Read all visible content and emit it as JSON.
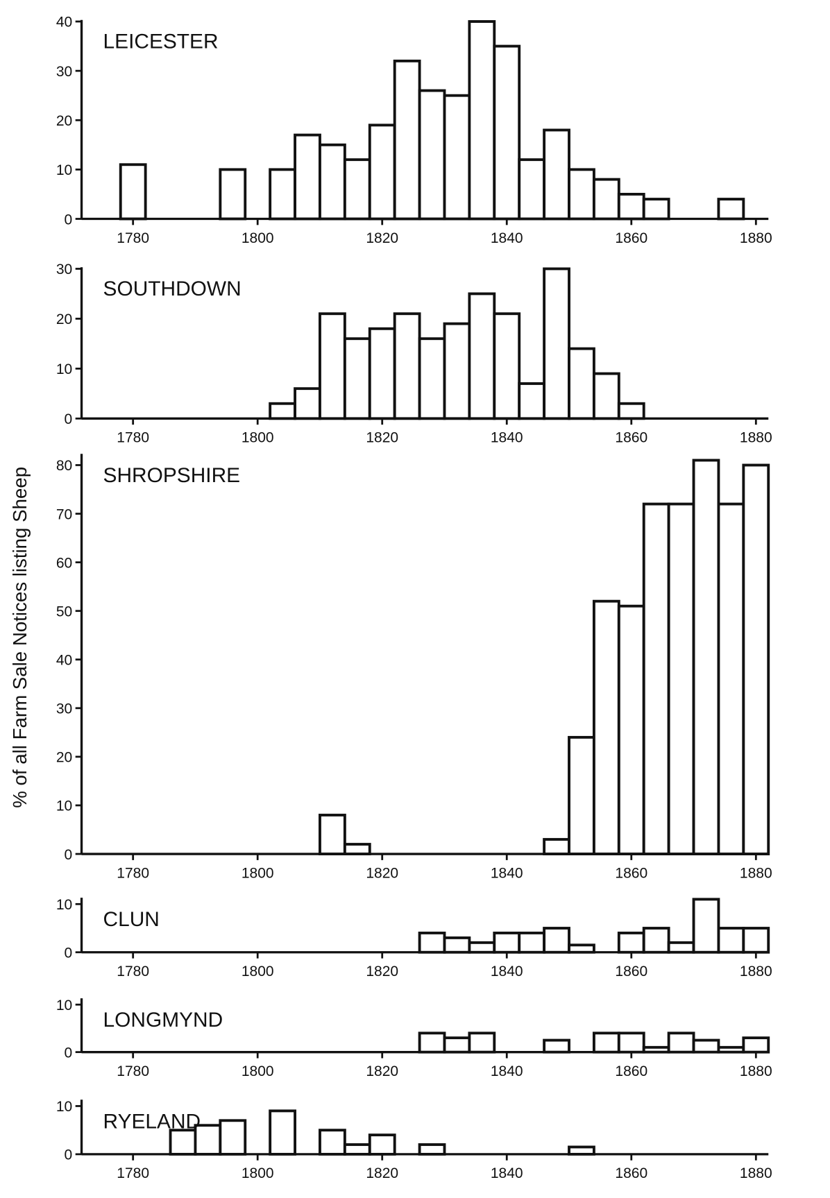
{
  "ylabel": "% of all Farm Sale Notices listing Sheep",
  "chart_data": [
    {
      "type": "histogram",
      "title": "LEICESTER",
      "bins": [
        1778,
        1782,
        1786,
        1790,
        1794,
        1798,
        1802,
        1806,
        1810,
        1814,
        1818,
        1822,
        1826,
        1830,
        1834,
        1838,
        1842,
        1846,
        1850,
        1854,
        1858,
        1862,
        1866,
        1870,
        1874,
        1878,
        1882
      ],
      "values": [
        11,
        0,
        0,
        0,
        10,
        0,
        10,
        17,
        15,
        12,
        19,
        32,
        26,
        25,
        40,
        35,
        12,
        18,
        10,
        8,
        5,
        4,
        0,
        0,
        4,
        0
      ],
      "xlim": [
        1771,
        1882
      ],
      "xticks": [
        1780,
        1800,
        1820,
        1840,
        1860,
        1880
      ],
      "ylim": [
        0,
        40
      ],
      "yticks": [
        0,
        10,
        20,
        30,
        40
      ]
    },
    {
      "type": "histogram",
      "title": "SOUTHDOWN",
      "bins": [
        1778,
        1782,
        1786,
        1790,
        1794,
        1798,
        1802,
        1806,
        1810,
        1814,
        1818,
        1822,
        1826,
        1830,
        1834,
        1838,
        1842,
        1846,
        1850,
        1854,
        1858,
        1862,
        1866,
        1870,
        1874,
        1878,
        1882
      ],
      "values": [
        0,
        0,
        0,
        0,
        0,
        0,
        3,
        6,
        21,
        16,
        18,
        21,
        16,
        19,
        25,
        21,
        7,
        30,
        14,
        9,
        3,
        0,
        0,
        0,
        0,
        0
      ],
      "xlim": [
        1771,
        1882
      ],
      "xticks": [
        1780,
        1800,
        1820,
        1840,
        1860,
        1880
      ],
      "ylim": [
        0,
        30
      ],
      "yticks": [
        0,
        10,
        20,
        30
      ]
    },
    {
      "type": "histogram",
      "title": "SHROPSHIRE",
      "bins": [
        1778,
        1782,
        1786,
        1790,
        1794,
        1798,
        1802,
        1806,
        1810,
        1814,
        1818,
        1822,
        1826,
        1830,
        1834,
        1838,
        1842,
        1846,
        1850,
        1854,
        1858,
        1862,
        1866,
        1870,
        1874,
        1878,
        1882
      ],
      "values": [
        0,
        0,
        0,
        0,
        0,
        0,
        0,
        0,
        8,
        2,
        0,
        0,
        0,
        0,
        0,
        0,
        0,
        3,
        24,
        52,
        51,
        72,
        72,
        81,
        72,
        80
      ],
      "xlim": [
        1771,
        1882
      ],
      "xticks": [
        1780,
        1800,
        1820,
        1840,
        1860,
        1880
      ],
      "ylim": [
        0,
        82
      ],
      "yticks": [
        0,
        10,
        20,
        30,
        40,
        50,
        60,
        70,
        80
      ]
    },
    {
      "type": "histogram",
      "title": "CLUN",
      "bins": [
        1778,
        1782,
        1786,
        1790,
        1794,
        1798,
        1802,
        1806,
        1810,
        1814,
        1818,
        1822,
        1826,
        1830,
        1834,
        1838,
        1842,
        1846,
        1850,
        1854,
        1858,
        1862,
        1866,
        1870,
        1874,
        1878,
        1882
      ],
      "values": [
        0,
        0,
        0,
        0,
        0,
        0,
        0,
        0,
        0,
        0,
        0,
        0,
        4,
        3,
        2,
        4,
        4,
        5,
        1.5,
        0,
        4,
        5,
        2,
        11,
        5,
        5
      ],
      "xlim": [
        1771,
        1882
      ],
      "xticks": [
        1780,
        1800,
        1820,
        1840,
        1860,
        1880
      ],
      "ylim": [
        0,
        11
      ],
      "yticks": [
        0,
        10
      ]
    },
    {
      "type": "histogram",
      "title": "LONGMYND",
      "bins": [
        1778,
        1782,
        1786,
        1790,
        1794,
        1798,
        1802,
        1806,
        1810,
        1814,
        1818,
        1822,
        1826,
        1830,
        1834,
        1838,
        1842,
        1846,
        1850,
        1854,
        1858,
        1862,
        1866,
        1870,
        1874,
        1878,
        1882
      ],
      "values": [
        0,
        0,
        0,
        0,
        0,
        0,
        0,
        0,
        0,
        0,
        0,
        0,
        4,
        3,
        4,
        0,
        0,
        2.5,
        0,
        4,
        4,
        1,
        4,
        2.5,
        1,
        3
      ],
      "xlim": [
        1771,
        1882
      ],
      "xticks": [
        1780,
        1800,
        1820,
        1840,
        1860,
        1880
      ],
      "ylim": [
        0,
        11
      ],
      "yticks": [
        0,
        10
      ]
    },
    {
      "type": "histogram",
      "title": "RYELAND",
      "bins": [
        1778,
        1782,
        1786,
        1790,
        1794,
        1798,
        1802,
        1806,
        1810,
        1814,
        1818,
        1822,
        1826,
        1830,
        1834,
        1838,
        1842,
        1846,
        1850,
        1854,
        1858,
        1862,
        1866,
        1870,
        1874,
        1878,
        1882
      ],
      "values": [
        0,
        0,
        5,
        6,
        7,
        0,
        9,
        0,
        5,
        2,
        4,
        0,
        2,
        0,
        0,
        0,
        0,
        0,
        1.5,
        0,
        0,
        0,
        0,
        0,
        0,
        0
      ],
      "xlim": [
        1771,
        1882
      ],
      "xticks": [
        1780,
        1800,
        1820,
        1840,
        1860,
        1880
      ],
      "ylim": [
        0,
        11
      ],
      "yticks": [
        0,
        10
      ]
    }
  ]
}
